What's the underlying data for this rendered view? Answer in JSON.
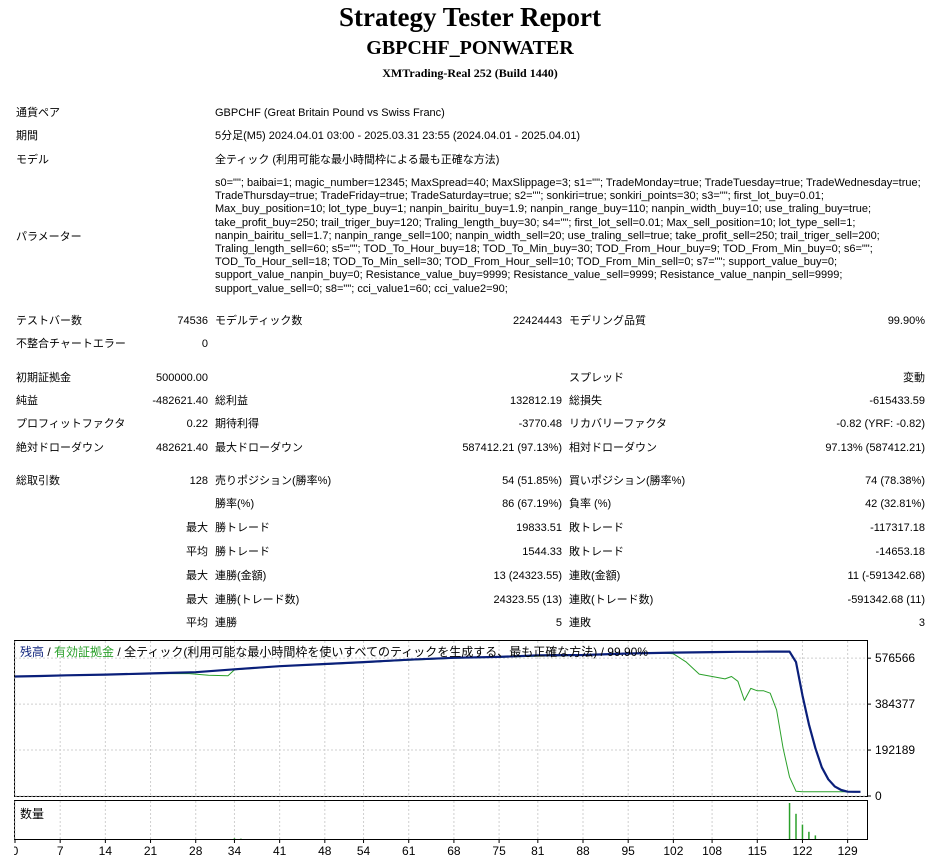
{
  "header": {
    "title": "Strategy Tester Report",
    "symbol_ea": "GBPCHF_PONWATER",
    "server": "XMTrading-Real 252 (Build 1440)"
  },
  "info": {
    "pair_label": "通貨ペア",
    "pair_value": "GBPCHF (Great Britain Pound vs Swiss Franc)",
    "period_label": "期間",
    "period_value": "5分足(M5) 2024.04.01 03:00 - 2025.03.31 23:55 (2024.04.01 - 2025.04.01)",
    "model_label": "モデル",
    "model_value": "全ティック (利用可能な最小時間枠による最も正確な方法)",
    "params_label": "パラメーター",
    "params_value": "s0=\"\"; baibai=1; magic_number=12345; MaxSpread=40; MaxSlippage=3; s1=\"\"; TradeMonday=true; TradeTuesday=true; TradeWednesday=true; TradeThursday=true; TradeFriday=true; TradeSaturday=true; s2=\"\"; sonkiri=true; sonkiri_points=30; s3=\"\"; first_lot_buy=0.01; Max_buy_position=10; lot_type_buy=1; nanpin_bairitu_buy=1.9; nanpin_range_buy=110; nanpin_width_buy=10; use_traling_buy=true; take_profit_buy=250; trail_triger_buy=120; Traling_length_buy=30; s4=\"\"; first_lot_sell=0.01; Max_sell_position=10; lot_type_sell=1; nanpin_bairitu_sell=1.7; nanpin_range_sell=100; nanpin_width_sell=20; use_traling_sell=true; take_profit_sell=250; trail_triger_sell=200; Traling_length_sell=60; s5=\"\"; TOD_To_Hour_buy=18; TOD_To_Min_buy=30; TOD_From_Hour_buy=9; TOD_From_Min_buy=0; s6=\"\"; TOD_To_Hour_sell=18; TOD_To_Min_sell=30; TOD_From_Hour_sell=10; TOD_From_Min_sell=0; s7=\"\"; support_value_buy=0; support_value_nanpin_buy=0; Resistance_value_buy=9999; Resistance_value_sell=9999; Resistance_value_nanpin_sell=9999; support_value_sell=0; s8=\"\"; cci_value1=60; cci_value2=90;"
  },
  "stats": {
    "bars_label": "テストバー数",
    "bars_value": "74536",
    "ticks_label": "モデルティック数",
    "ticks_value": "22424443",
    "quality_label": "モデリング品質",
    "quality_value": "99.90%",
    "mismatch_label": "不整合チャートエラー",
    "mismatch_value": "0",
    "deposit_label": "初期証拠金",
    "deposit_value": "500000.00",
    "spread_label": "スプレッド",
    "spread_value": "変動",
    "net_label": "純益",
    "net_value": "-482621.40",
    "gross_profit_label": "総利益",
    "gross_profit_value": "132812.19",
    "gross_loss_label": "総損失",
    "gross_loss_value": "-615433.59",
    "pf_label": "プロフィットファクタ",
    "pf_value": "0.22",
    "expected_label": "期待利得",
    "expected_value": "-3770.48",
    "recovery_label": "リカバリーファクタ",
    "recovery_value": "-0.82 (YRF: -0.82)",
    "abs_dd_label": "絶対ドローダウン",
    "abs_dd_value": "482621.40",
    "max_dd_label": "最大ドローダウン",
    "max_dd_value": "587412.21 (97.13%)",
    "rel_dd_label": "相対ドローダウン",
    "rel_dd_value": "97.13% (587412.21)",
    "trades_label": "総取引数",
    "trades_value": "128",
    "short_label": "売りポジション(勝率%)",
    "short_value": "54 (51.85%)",
    "long_label": "買いポジション(勝率%)",
    "long_value": "74 (78.38%)",
    "win_label": "勝率(%)",
    "win_value": "86 (67.19%)",
    "loss_label": "負率 (%)",
    "loss_value": "42 (32.81%)",
    "max_word": "最大",
    "avg_word": "平均",
    "lw_label": "勝トレード",
    "lw_value": "19833.51",
    "ll_label": "敗トレード",
    "ll_value": "-117317.18",
    "aw_label": "勝トレード",
    "aw_value": "1544.33",
    "al_label": "敗トレード",
    "al_value": "-14653.18",
    "mcw_label": "連勝(金額)",
    "mcw_value": "13 (24323.55)",
    "mcl_label": "連敗(金額)",
    "mcl_value": "11 (-591342.68)",
    "mcp_label": "連勝(トレード数)",
    "mcp_value": "24323.55 (13)",
    "mcll_label": "連敗(トレード数)",
    "mcll_value": "-591342.68 (11)",
    "acw_label": "連勝",
    "acw_value": "5",
    "acl_label": "連敗",
    "acl_value": "3"
  },
  "chart_legend": {
    "balance": "残高",
    "sep1": " / ",
    "equity": "有効証拠金",
    "sep2": " / ",
    "rest": "全ティック(利用可能な最小時間枠を使いすべてのティックを生成する、最も正確な方法) / 99.90%",
    "volume": "数量"
  },
  "chart_data": {
    "type": "line",
    "title": "",
    "xlabel": "",
    "ylabel": "",
    "x_ticks": [
      0,
      7,
      14,
      21,
      28,
      34,
      41,
      48,
      54,
      61,
      68,
      75,
      81,
      88,
      95,
      102,
      108,
      115,
      122,
      129
    ],
    "y_ticks": [
      576566,
      384377,
      192189,
      0
    ],
    "xlim": [
      0,
      132
    ],
    "ylim": [
      0,
      640000
    ],
    "colors": {
      "balance": "#0a1f7a",
      "equity": "#2aa02a",
      "volume": "#2aa02a",
      "grid": "#cfcfcf"
    },
    "series": [
      {
        "name": "残高",
        "x": [
          0,
          4,
          8,
          14,
          20,
          24,
          28,
          34,
          41,
          48,
          54,
          61,
          68,
          75,
          81,
          88,
          95,
          102,
          108,
          112,
          114,
          117,
          120,
          121,
          122,
          123,
          124,
          125,
          126,
          127,
          128,
          129,
          130,
          131
        ],
        "y": [
          500000,
          502000,
          505000,
          508000,
          512000,
          515000,
          518000,
          530000,
          543000,
          552000,
          560000,
          570000,
          578000,
          582000,
          588000,
          590000,
          596000,
          600000,
          602000,
          603000,
          603000,
          604000,
          604000,
          560000,
          420000,
          300000,
          200000,
          120000,
          70000,
          40000,
          25000,
          18000,
          17500,
          17378
        ]
      },
      {
        "name": "有効証拠金",
        "x": [
          0,
          14,
          20,
          27,
          30,
          33,
          34,
          41,
          48,
          54,
          61,
          68,
          75,
          81,
          88,
          95,
          100,
          102,
          104,
          106,
          108,
          110,
          111,
          112,
          113,
          114,
          115,
          116,
          117,
          118,
          119,
          120,
          121,
          122,
          125,
          129,
          131
        ],
        "y": [
          500000,
          508000,
          512000,
          512000,
          505000,
          503000,
          528000,
          542000,
          550000,
          558000,
          568000,
          576000,
          580000,
          585000,
          588000,
          595000,
          598000,
          595000,
          560000,
          510000,
          500000,
          490000,
          500000,
          480000,
          400000,
          450000,
          440000,
          440000,
          430000,
          360000,
          200000,
          80000,
          20000,
          17400,
          17400,
          17400,
          17378
        ]
      }
    ],
    "volume": {
      "x": [
        34,
        35,
        120,
        121,
        122,
        123,
        124
      ],
      "y": [
        0.02,
        0.01,
        1.0,
        0.7,
        0.4,
        0.2,
        0.1
      ]
    }
  }
}
